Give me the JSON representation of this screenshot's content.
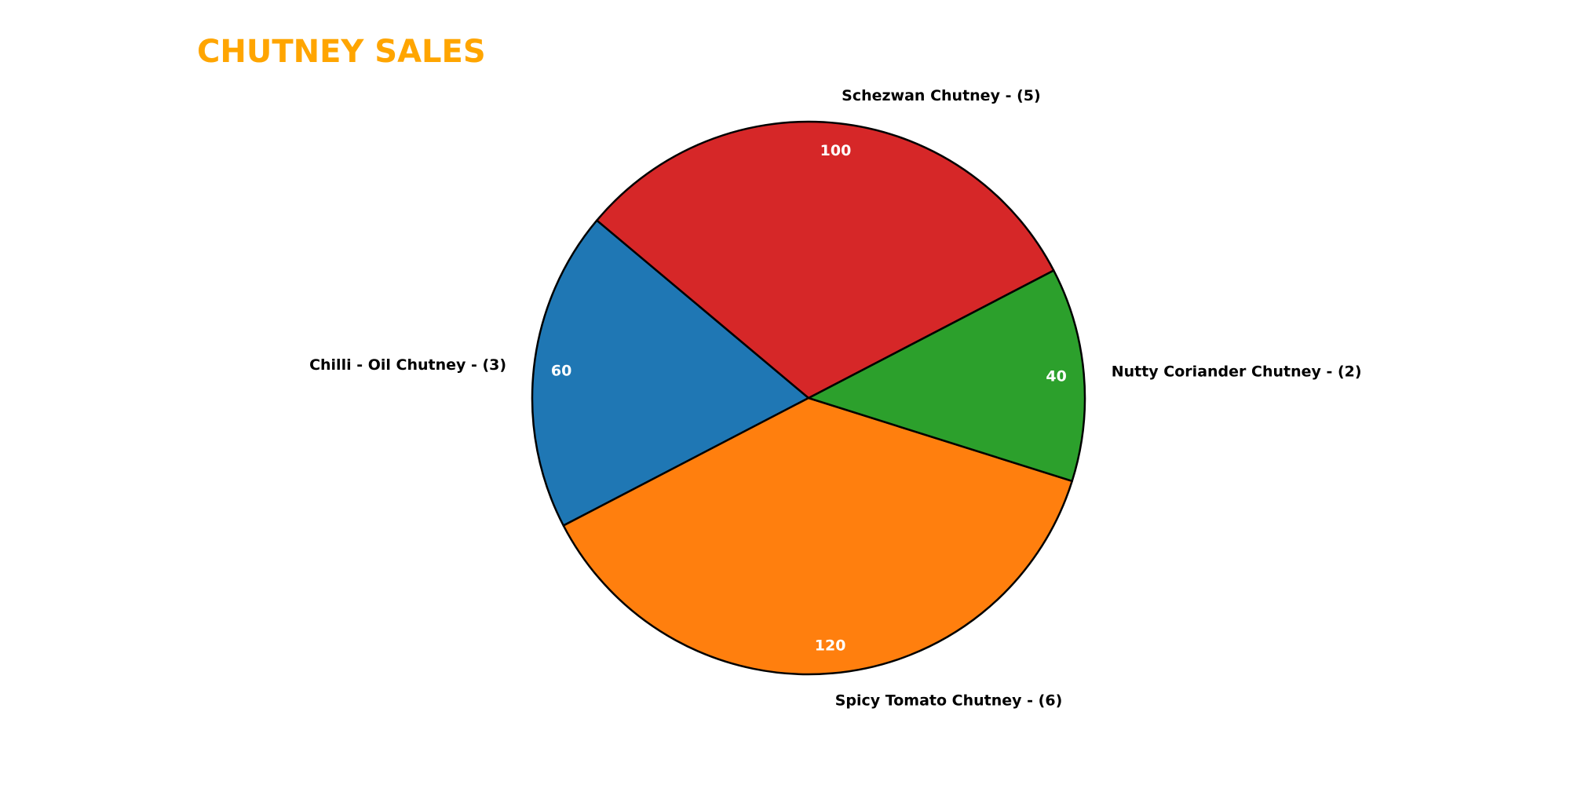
{
  "chart_data": {
    "type": "pie",
    "title": "CHUTNEY SALES",
    "title_color": "#FFA500",
    "categories": [
      "Chilli - Oil Chutney - (3)",
      "Spicy Tomato Chutney - (6)",
      "Nutty Coriander Chutney - (2)",
      "Schezwan Chutney - (5)"
    ],
    "values": [
      60,
      120,
      40,
      100
    ],
    "value_labels": [
      "60",
      "120",
      "40",
      "100"
    ],
    "colors": [
      "#1F77B4",
      "#FF7F0E",
      "#2CA02C",
      "#D62728"
    ],
    "start_angle_deg": 140,
    "direction": "counterclockwise",
    "edge_color": "#000000",
    "legend": "none",
    "grid": false
  }
}
